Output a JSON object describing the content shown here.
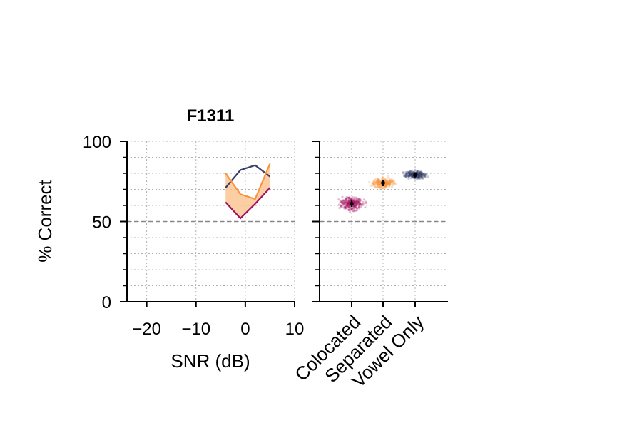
{
  "title": "F1311",
  "colors": {
    "colocated": "#a3135f",
    "separated": "#f9933c",
    "separated_fill": "#fbc594",
    "vowel_only": "#373e66",
    "reference": "#888888",
    "grid": "#b0b0b0"
  },
  "chart_data": [
    {
      "type": "line",
      "title": "F1311",
      "xlabel": "SNR (dB)",
      "ylabel": "% Correct",
      "xlim": [
        -24,
        10
      ],
      "ylim": [
        0,
        100
      ],
      "x_ticks": [
        -20,
        -10,
        0,
        10
      ],
      "x_tick_labels": [
        "−20",
        "−10",
        "0",
        "10"
      ],
      "y_ticks": [
        0,
        50,
        100
      ],
      "y_tick_labels": [
        "0",
        "50",
        "100"
      ],
      "y_minor_ticks": [
        10,
        20,
        30,
        40,
        60,
        70,
        80,
        90
      ],
      "grid": true,
      "reference_line": 50,
      "series": [
        {
          "key": "vowel_only",
          "x": [
            -4,
            -1,
            2,
            5
          ],
          "values": [
            71,
            82,
            85,
            78
          ]
        },
        {
          "key": "separated",
          "x": [
            -4,
            -1,
            2,
            5
          ],
          "values": [
            80,
            67,
            64,
            86
          ]
        },
        {
          "key": "colocated",
          "x": [
            -4,
            -1,
            2,
            5
          ],
          "values": [
            62,
            52,
            61,
            71
          ]
        }
      ],
      "shaded_band": {
        "between": [
          "separated",
          "colocated"
        ],
        "description": "area between separated and colocated"
      }
    },
    {
      "type": "scatter",
      "categories": [
        "Colocated",
        "Separated",
        "Vowel Only"
      ],
      "ylim": [
        0,
        100
      ],
      "y_ticks": [
        0,
        50,
        100
      ],
      "y_minor_ticks": [
        10,
        20,
        30,
        40,
        60,
        70,
        80,
        90
      ],
      "grid": true,
      "reference_line": 50,
      "values": [
        61,
        74,
        79
      ],
      "error": [
        2,
        2,
        1.5
      ],
      "spread": [
        3,
        2.5,
        2
      ]
    }
  ]
}
